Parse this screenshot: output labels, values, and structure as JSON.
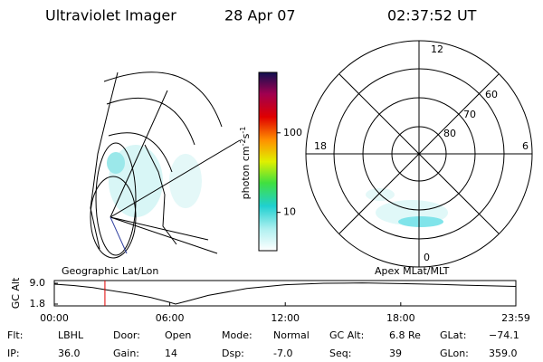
{
  "header": {
    "title": "Ultraviolet Imager",
    "date": "28 Apr 07",
    "time": "02:37:52 UT"
  },
  "colorbar": {
    "label": "photon cm",
    "exp1": "-2",
    "unit2": "s",
    "exp2": "-1",
    "lim": [
      3.3,
      575
    ],
    "log": true,
    "ticks": [
      10,
      100
    ]
  },
  "left_panel": {
    "label": "Geographic Lat/Lon"
  },
  "right_panel": {
    "label": "Apex MLat/MLT",
    "mlt_labels": [
      "12",
      "18",
      "6",
      "0"
    ],
    "lat_labels": [
      "60",
      "70",
      "80"
    ]
  },
  "altitude_plot": {
    "ylabel": "GC Alt",
    "ylim": [
      1.8,
      9.0
    ],
    "yticks": [
      {
        "value": 9.0,
        "label": "9.0"
      },
      1.8
    ],
    "xlim": [
      0,
      23.98
    ],
    "xticks": [
      {
        "value": 0,
        "label": "00:00"
      },
      {
        "value": 6,
        "label": "06:00"
      },
      {
        "value": 12,
        "label": "12:00"
      },
      {
        "value": 18,
        "label": "18:00"
      },
      {
        "value": 23.98,
        "label": "23:59"
      }
    ],
    "x": [
      0,
      1,
      2,
      2.63,
      4,
      5,
      6,
      6.3,
      7,
      8,
      10,
      12,
      14,
      16,
      18,
      20,
      22,
      23.98
    ],
    "values": [
      8.7,
      8.2,
      7.5,
      6.8,
      5.4,
      4.1,
      2.4,
      1.8,
      3.0,
      4.8,
      7.2,
      8.5,
      9.0,
      9.1,
      8.9,
      8.6,
      8.2,
      7.9
    ],
    "color": "#000000",
    "current_time": 2.63,
    "current_color": "#e00000"
  },
  "status": [
    [
      [
        "Flt:",
        "LBHL"
      ],
      [
        "Door:",
        "Open"
      ],
      [
        "Mode:",
        "Normal"
      ],
      [
        "GC Alt:",
        "6.8 Re"
      ],
      [
        "GLat:",
        "−74.1"
      ]
    ],
    [
      [
        "IP:",
        "36.0"
      ],
      [
        "Gain:",
        "14"
      ],
      [
        "Dsp:",
        "-7.0"
      ],
      [
        "Seq:",
        "39"
      ],
      [
        "GLon:",
        "359.0"
      ]
    ]
  ]
}
